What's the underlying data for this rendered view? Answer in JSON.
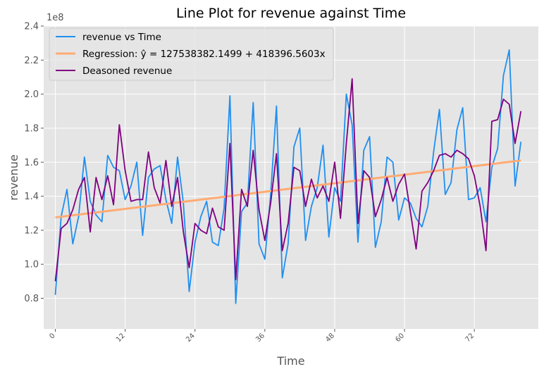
{
  "chart_data": {
    "type": "line",
    "title": "Line Plot for revenue against Time",
    "xlabel": "Time",
    "ylabel": "revenue",
    "y_scale_label": "1e8",
    "xlim": [
      -2,
      83
    ],
    "ylim": [
      0.62,
      2.4
    ],
    "x_ticks": [
      0,
      12,
      24,
      36,
      48,
      60,
      72
    ],
    "y_ticks": [
      0.8,
      1.0,
      1.2,
      1.4,
      1.6,
      1.8,
      2.0,
      2.2,
      2.4
    ],
    "grid": true,
    "legend_position": "top-left",
    "series": [
      {
        "name": "revenue vs Time",
        "color": "#1f8ff0",
        "values": [
          0.82,
          1.28,
          1.44,
          1.12,
          1.28,
          1.63,
          1.37,
          1.29,
          1.25,
          1.64,
          1.57,
          1.55,
          1.38,
          1.46,
          1.6,
          1.17,
          1.51,
          1.56,
          1.58,
          1.38,
          1.24,
          1.63,
          1.36,
          0.84,
          1.13,
          1.28,
          1.37,
          1.13,
          1.11,
          1.33,
          1.99,
          0.77,
          1.31,
          1.36,
          1.95,
          1.12,
          1.03,
          1.41,
          1.93,
          0.92,
          1.12,
          1.69,
          1.8,
          1.14,
          1.34,
          1.45,
          1.7,
          1.16,
          1.45,
          1.37,
          2.0,
          1.82,
          1.13,
          1.67,
          1.75,
          1.1,
          1.25,
          1.63,
          1.6,
          1.26,
          1.39,
          1.36,
          1.27,
          1.22,
          1.34,
          1.66,
          1.91,
          1.41,
          1.48,
          1.79,
          1.92,
          1.38,
          1.39,
          1.45,
          1.25,
          1.57,
          1.68,
          2.11,
          2.26,
          1.46,
          1.72
        ]
      },
      {
        "name": "Regression: ŷ = 127538382.1499 + 418396.5603x",
        "color": "#ffab73",
        "intercept": 1.275383821499,
        "slope": 0.004183965603
      },
      {
        "name": "Deasoned revenue",
        "color": "#7f007f",
        "values": [
          0.9,
          1.21,
          1.24,
          1.32,
          1.44,
          1.51,
          1.19,
          1.51,
          1.38,
          1.52,
          1.35,
          1.82,
          1.55,
          1.37,
          1.38,
          1.38,
          1.66,
          1.45,
          1.36,
          1.61,
          1.34,
          1.51,
          1.19,
          0.98,
          1.24,
          1.2,
          1.18,
          1.33,
          1.22,
          1.2,
          1.71,
          0.91,
          1.44,
          1.34,
          1.67,
          1.32,
          1.14,
          1.36,
          1.65,
          1.08,
          1.24,
          1.57,
          1.55,
          1.34,
          1.5,
          1.39,
          1.46,
          1.37,
          1.6,
          1.27,
          1.71,
          2.09,
          1.24,
          1.55,
          1.51,
          1.28,
          1.38,
          1.51,
          1.37,
          1.47,
          1.53,
          1.31,
          1.09,
          1.43,
          1.48,
          1.55,
          1.64,
          1.65,
          1.63,
          1.67,
          1.65,
          1.62,
          1.52,
          1.34,
          1.08,
          1.84,
          1.85,
          1.97,
          1.94,
          1.71,
          1.9
        ]
      }
    ]
  }
}
